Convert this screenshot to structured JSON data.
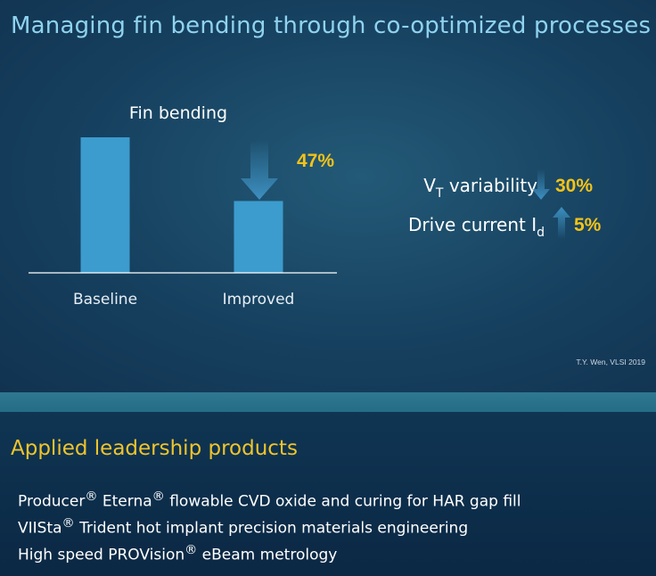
{
  "title": "Managing fin bending through co-optimized processes",
  "chart_data": {
    "type": "bar",
    "title": "Fin bending",
    "categories": [
      "Baseline",
      "Improved"
    ],
    "values": [
      100,
      53
    ],
    "ylim": [
      0,
      100
    ],
    "annotation": {
      "label": "47%",
      "direction": "down",
      "target": "Improved"
    },
    "colors": {
      "bar": "#3c9ccd",
      "axis": "#ffffff",
      "highlight": "#f3c318"
    }
  },
  "metrics": [
    {
      "label": "V",
      "sub": "T",
      "suffix": " variability",
      "direction": "down",
      "value": "30%"
    },
    {
      "label": "Drive current I",
      "sub": "d",
      "suffix": "",
      "direction": "up",
      "value": "5%"
    }
  ],
  "citation": "T.Y. Wen, VLSI 2019",
  "section": {
    "title": "Applied leadership products",
    "products": [
      {
        "name": "Producer",
        "mark1": "®",
        "name2": " Eterna",
        "mark2": "®",
        "rest": " flowable CVD oxide and curing for HAR gap fill"
      },
      {
        "name": "VIISta",
        "mark1": "®",
        "name2": " Trident hot implant precision materials engineering",
        "mark2": "",
        "rest": ""
      },
      {
        "name": "High speed PROVision",
        "mark1": "®",
        "name2": " eBeam metrology",
        "mark2": "",
        "rest": ""
      }
    ]
  }
}
